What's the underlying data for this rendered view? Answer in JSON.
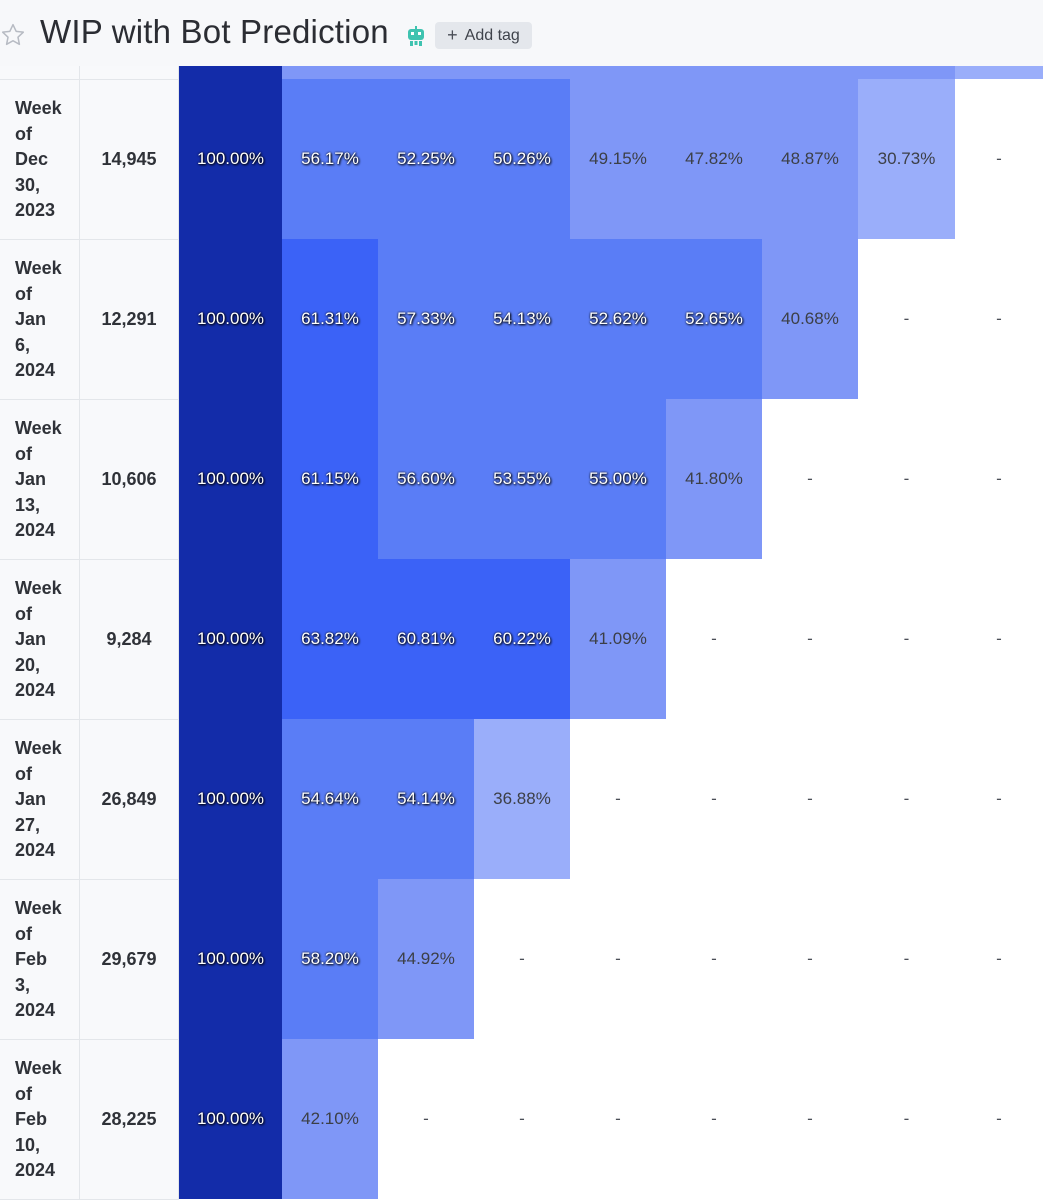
{
  "header": {
    "title": "WIP with Bot Prediction",
    "add_tag_label": "Add tag",
    "icons": [
      "star-icon",
      "robot-icon",
      "plus-icon"
    ]
  },
  "colors": {
    "first_column": "#132ca9",
    "high": "#3b62f7",
    "mid": "#5a7df6",
    "low": "#7f97f7",
    "lowest": "#9aaefa",
    "header_bg": "#f7f8fa"
  },
  "cohorts": [
    {
      "label": [
        "Week",
        "of",
        "Dec",
        "30,",
        "2023"
      ],
      "count": "14,945",
      "values": [
        "100.00%",
        "56.17%",
        "52.25%",
        "50.26%",
        "49.15%",
        "47.82%",
        "48.87%",
        "30.73%",
        "-"
      ]
    },
    {
      "label": [
        "Week",
        "of",
        "Jan",
        "6,",
        "2024"
      ],
      "count": "12,291",
      "values": [
        "100.00%",
        "61.31%",
        "57.33%",
        "54.13%",
        "52.62%",
        "52.65%",
        "40.68%",
        "-",
        "-"
      ]
    },
    {
      "label": [
        "Week",
        "of",
        "Jan",
        "13,",
        "2024"
      ],
      "count": "10,606",
      "values": [
        "100.00%",
        "61.15%",
        "56.60%",
        "53.55%",
        "55.00%",
        "41.80%",
        "-",
        "-",
        "-"
      ]
    },
    {
      "label": [
        "Week",
        "of",
        "Jan",
        "20,",
        "2024"
      ],
      "count": "9,284",
      "values": [
        "100.00%",
        "63.82%",
        "60.81%",
        "60.22%",
        "41.09%",
        "-",
        "-",
        "-",
        "-"
      ]
    },
    {
      "label": [
        "Week",
        "of",
        "Jan",
        "27,",
        "2024"
      ],
      "count": "26,849",
      "values": [
        "100.00%",
        "54.64%",
        "54.14%",
        "36.88%",
        "-",
        "-",
        "-",
        "-",
        "-"
      ]
    },
    {
      "label": [
        "Week",
        "of",
        "Feb",
        "3,",
        "2024"
      ],
      "count": "29,679",
      "values": [
        "100.00%",
        "58.20%",
        "44.92%",
        "-",
        "-",
        "-",
        "-",
        "-",
        "-"
      ]
    },
    {
      "label": [
        "Week",
        "of",
        "Feb",
        "10,",
        "2024"
      ],
      "count": "28,225",
      "values": [
        "100.00%",
        "42.10%",
        "-",
        "-",
        "-",
        "-",
        "-",
        "-",
        "-"
      ]
    }
  ]
}
